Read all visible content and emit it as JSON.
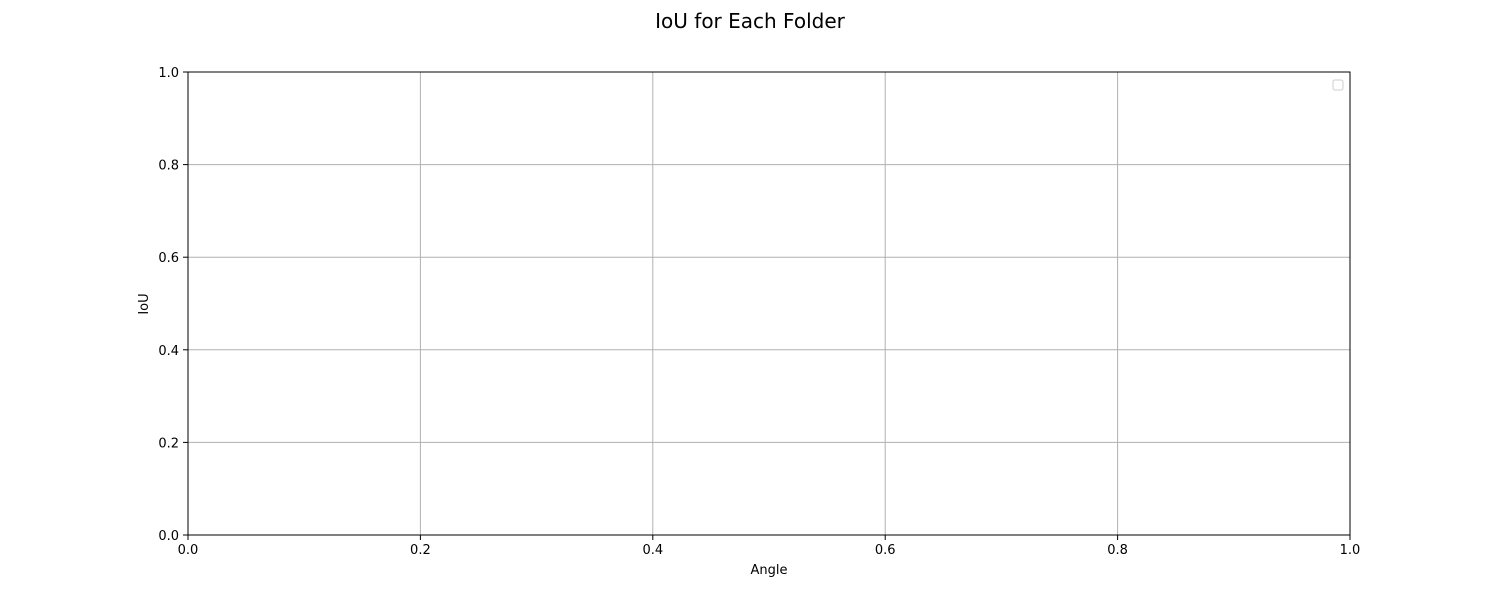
{
  "chart_data": {
    "type": "line",
    "title": "IoU for Each Folder",
    "xlabel": "Angle",
    "ylabel": "IoU",
    "xlim": [
      0.0,
      1.0
    ],
    "ylim": [
      0.0,
      1.0
    ],
    "xticks": [
      "0.0",
      "0.2",
      "0.4",
      "0.6",
      "0.8",
      "1.0"
    ],
    "yticks": [
      "0.0",
      "0.2",
      "0.4",
      "0.6",
      "0.8",
      "1.0"
    ],
    "series": [],
    "grid": true,
    "legend": {
      "placement": "upper-right",
      "entries": []
    },
    "colors": {
      "grid": "#b0b0b0",
      "axes": "#000000",
      "background": "#ffffff"
    }
  }
}
